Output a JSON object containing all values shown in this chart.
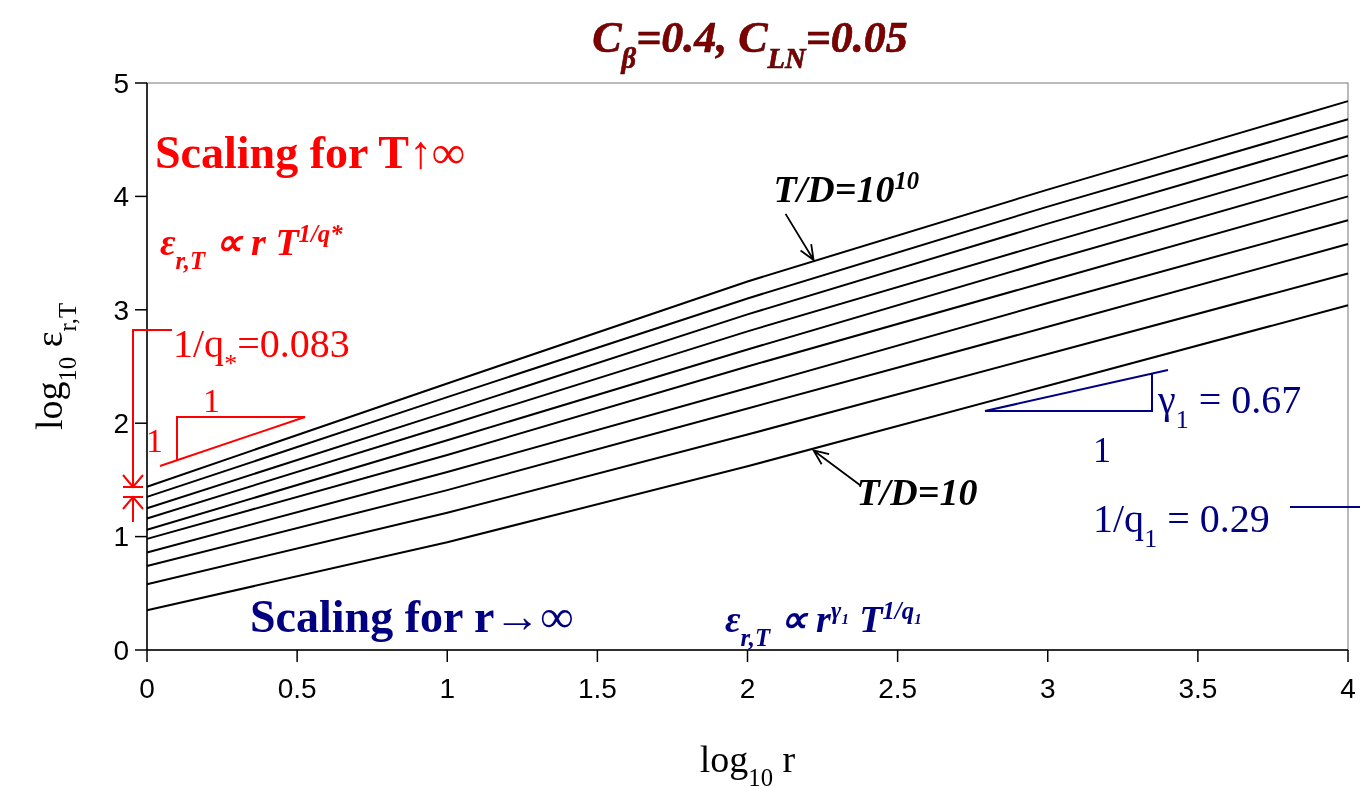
{
  "chart_data": {
    "type": "line",
    "title": "C$_{β}$=0.4, C$_{LN}$=0.05",
    "xlabel": "log$_{10}$ r",
    "ylabel": "log$_{10}$ ε$_{r,T}$",
    "x": [
      0,
      1,
      2,
      3,
      4
    ],
    "series": [
      {
        "color": "#000000",
        "values": [
          0.35,
          0.95,
          1.62,
          2.33,
          3.04
        ]
      },
      {
        "color": "#000000",
        "values": [
          0.58,
          1.21,
          1.9,
          2.61,
          3.32
        ]
      },
      {
        "color": "#000000",
        "values": [
          0.74,
          1.41,
          2.13,
          2.85,
          3.58
        ]
      },
      {
        "color": "#000000",
        "values": [
          0.86,
          1.57,
          2.31,
          3.06,
          3.79
        ]
      },
      {
        "color": "#000000",
        "values": [
          0.98,
          1.72,
          2.5,
          3.25,
          4.0
        ]
      },
      {
        "color": "#000000",
        "values": [
          1.06,
          1.85,
          2.65,
          3.43,
          4.19
        ]
      },
      {
        "color": "#000000",
        "values": [
          1.16,
          1.98,
          2.81,
          3.59,
          4.36
        ]
      },
      {
        "color": "#000000",
        "values": [
          1.25,
          2.1,
          2.96,
          3.76,
          4.53
        ]
      },
      {
        "color": "#000000",
        "values": [
          1.35,
          2.23,
          3.1,
          3.91,
          4.68
        ]
      },
      {
        "color": "#000000",
        "values": [
          1.44,
          2.35,
          3.25,
          4.06,
          4.84
        ]
      }
    ],
    "xlim": [
      0,
      4
    ],
    "ylim": [
      0,
      5
    ],
    "xticks": [
      0,
      0.5,
      1,
      1.5,
      2,
      2.5,
      3,
      3.5,
      4
    ],
    "yticks": [
      0,
      1,
      2,
      3,
      4,
      5
    ],
    "grid": false,
    "line_style": "solid",
    "annotations": [
      "Scaling for T↑∞",
      "ε$_{r,T}$ ∝ r T$^{1/q*}$",
      "1/q$_{*}$=0.083",
      "1",
      "1",
      {
        "text": "T/D=10$^{10}$",
        "x": 2.22,
        "y": 3.44
      },
      {
        "text": "T/D=10",
        "x": 2.22,
        "y": 1.76
      },
      "γ$_{1}$ = 0.67",
      "1",
      "1/q$_{1}$ = 0.29",
      "Scaling for r→∞",
      "ε$_{r,T}$ ∝ r$^{γ₁}$ T$^{1/q₁}$"
    ]
  }
}
